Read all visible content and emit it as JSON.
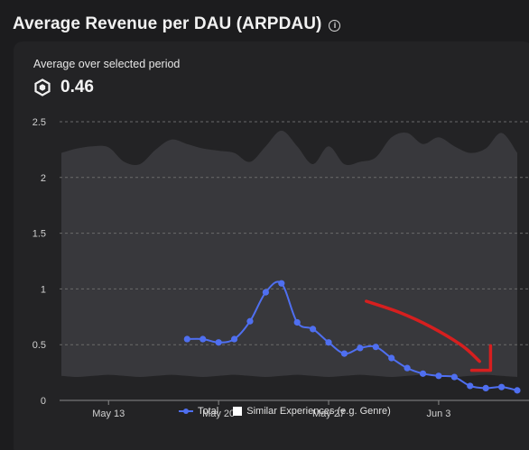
{
  "header": {
    "title": "Average Revenue per DAU (ARPDAU)",
    "info_icon": "info-icon"
  },
  "summary": {
    "label": "Average over selected period",
    "value": "0.46",
    "currency_icon": "robux-icon"
  },
  "colors": {
    "total_line": "#4f6ff0",
    "band_fill": "#3a3a3d",
    "annotation": "#d61f1f",
    "grid": "#6a6a6a"
  },
  "chart_data": {
    "type": "line",
    "title": "",
    "xlabel": "",
    "ylabel": "",
    "ylim": [
      0,
      2.5
    ],
    "yticks": [
      "0",
      "0.5",
      "1",
      "1.5",
      "2",
      "2.5"
    ],
    "xlim": [
      0,
      29
    ],
    "xticks": [
      {
        "label": "May 13",
        "x": 3
      },
      {
        "label": "May 20",
        "x": 10
      },
      {
        "label": "May 27",
        "x": 17
      },
      {
        "label": "Jun 3",
        "x": 24
      }
    ],
    "grid": "horizontal dashed",
    "legend_position": "bottom",
    "series": [
      {
        "name": "Total",
        "x": [
          8,
          9,
          10,
          11,
          12,
          13,
          14,
          15,
          16,
          17,
          18,
          19,
          20,
          21,
          22,
          23,
          24,
          25,
          26,
          27,
          28,
          29
        ],
        "values": [
          0.55,
          0.55,
          0.52,
          0.55,
          0.71,
          0.97,
          1.05,
          0.7,
          0.64,
          0.52,
          0.42,
          0.47,
          0.48,
          0.38,
          0.29,
          0.24,
          0.22,
          0.21,
          0.13,
          0.11,
          0.12,
          0.09
        ]
      },
      {
        "name": "Similar Experiences (e.g. Genre)",
        "x": [
          0,
          1,
          2,
          3,
          4,
          5,
          6,
          7,
          8,
          9,
          10,
          11,
          12,
          13,
          14,
          15,
          16,
          17,
          18,
          19,
          20,
          21,
          22,
          23,
          24,
          25,
          26,
          27,
          28,
          29
        ],
        "upper": [
          2.22,
          2.26,
          2.28,
          2.27,
          2.14,
          2.12,
          2.25,
          2.34,
          2.3,
          2.26,
          2.24,
          2.22,
          2.14,
          2.28,
          2.42,
          2.28,
          2.12,
          2.28,
          2.12,
          2.14,
          2.18,
          2.36,
          2.4,
          2.3,
          2.36,
          2.28,
          2.22,
          2.26,
          2.4,
          2.22
        ],
        "lower": [
          0.22,
          0.21,
          0.22,
          0.23,
          0.22,
          0.21,
          0.22,
          0.23,
          0.22,
          0.21,
          0.22,
          0.23,
          0.22,
          0.21,
          0.22,
          0.23,
          0.22,
          0.21,
          0.22,
          0.23,
          0.22,
          0.21,
          0.22,
          0.23,
          0.22,
          0.21,
          0.22,
          0.23,
          0.22,
          0.21
        ]
      }
    ],
    "annotation": {
      "type": "hand-drawn red stroke",
      "points": [
        [
          19.4,
          0.89
        ],
        [
          21.5,
          0.79
        ],
        [
          23.5,
          0.66
        ],
        [
          25.5,
          0.49
        ],
        [
          26.6,
          0.35
        ]
      ],
      "hook": [
        [
          27.3,
          0.49
        ],
        [
          27.3,
          0.27
        ],
        [
          26.1,
          0.27
        ]
      ]
    }
  },
  "legend": {
    "items": [
      {
        "label": "Total",
        "marker": "line-dot"
      },
      {
        "label": "Similar Experiences (e.g. Genre)",
        "marker": "square"
      }
    ]
  }
}
